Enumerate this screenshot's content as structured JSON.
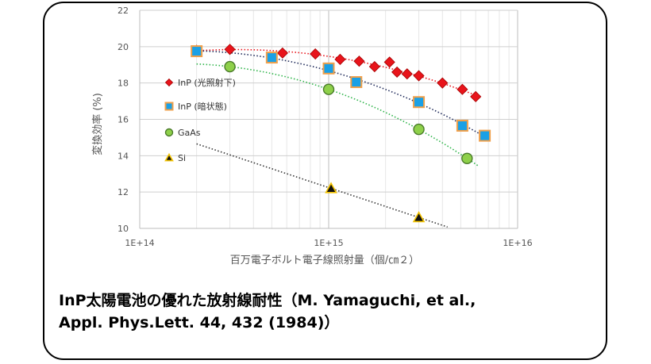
{
  "caption": {
    "line1": "InP太陽電池の優れた放射線耐性（M. Yamaguchi, et al.,",
    "line2": "Appl. Phys.Lett. 44, 432 (1984)）"
  },
  "chart_data": {
    "type": "scatter",
    "xscale": "log",
    "xlim": [
      100000000000000.0,
      1e+16
    ],
    "ylim": [
      10,
      22
    ],
    "xticks": [
      "1E+14",
      "1E+15",
      "1E+16"
    ],
    "yticks": [
      10,
      12,
      14,
      16,
      18,
      20,
      22
    ],
    "xlabel": "百万電子ボルト電子線照射量（個/㎝２）",
    "ylabel": "変換効率 (%)",
    "grid": true,
    "legend_position": "left",
    "series": [
      {
        "name": "InP (光照射下)",
        "marker": "diamond",
        "color": "#e8141b",
        "trendline_color": "#e8141b",
        "points": [
          [
            200000000000000.0,
            19.8
          ],
          [
            300000000000000.0,
            19.85
          ],
          [
            570000000000000.0,
            19.65
          ],
          [
            850000000000000.0,
            19.6
          ],
          [
            1150000000000000.0,
            19.3
          ],
          [
            1450000000000000.0,
            19.2
          ],
          [
            1750000000000000.0,
            18.9
          ],
          [
            2100000000000000.0,
            19.15
          ],
          [
            2300000000000000.0,
            18.6
          ],
          [
            2600000000000000.0,
            18.5
          ],
          [
            3000000000000000.0,
            18.4
          ],
          [
            4000000000000000.0,
            18.0
          ],
          [
            5100000000000000.0,
            17.65
          ],
          [
            6000000000000000.0,
            17.25
          ]
        ]
      },
      {
        "name": "InP (暗状態)",
        "marker": "square",
        "color": "#1aa0e6",
        "edge": "#f0a04b",
        "trendline_color": "#1f2a5a",
        "points": [
          [
            200000000000000.0,
            19.75
          ],
          [
            500000000000000.0,
            19.4
          ],
          [
            1000000000000000.0,
            18.8
          ],
          [
            1400000000000000.0,
            18.05
          ],
          [
            3000000000000000.0,
            16.95
          ],
          [
            5100000000000000.0,
            15.65
          ],
          [
            6700000000000000.0,
            15.1
          ]
        ]
      },
      {
        "name": "GaAs",
        "marker": "circle",
        "color": "#8ed04a",
        "edge": "#4a7a2a",
        "trendline_color": "#2fb44a",
        "points": [
          [
            300000000000000.0,
            18.9
          ],
          [
            1000000000000000.0,
            17.65
          ],
          [
            3000000000000000.0,
            15.45
          ],
          [
            5400000000000000.0,
            13.85
          ]
        ]
      },
      {
        "name": "Si",
        "marker": "triangle",
        "color": "#111111",
        "edge": "#f2c200",
        "trendline_color": "#333333",
        "points": [
          [
            1030000000000000.0,
            12.2
          ],
          [
            3000000000000000.0,
            10.6
          ]
        ]
      }
    ]
  }
}
